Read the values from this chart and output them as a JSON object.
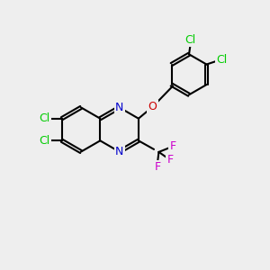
{
  "bg_color": "#eeeeee",
  "bond_color": "#000000",
  "bond_width": 1.5,
  "atom_colors": {
    "Cl": "#00cc00",
    "N": "#0000cc",
    "O": "#cc0000",
    "F": "#cc00cc",
    "C": "#000000"
  },
  "font_size": 9
}
